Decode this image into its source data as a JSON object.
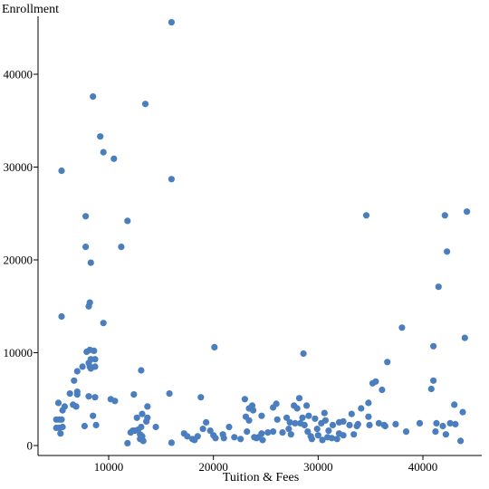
{
  "chart_data": {
    "type": "scatter",
    "title": "",
    "xlabel": "Tuition & Fees",
    "ylabel": "Enrollment",
    "xlim": [
      4000,
      45000
    ],
    "ylim": [
      0,
      46000
    ],
    "x_ticks": [
      10000,
      20000,
      30000,
      40000
    ],
    "y_ticks": [
      0,
      10000,
      20000,
      30000,
      40000
    ],
    "grid": false,
    "legend": "none",
    "point_color": "#4a7ebf",
    "points": [
      [
        16000,
        45600
      ],
      [
        8500,
        37600
      ],
      [
        13500,
        36800
      ],
      [
        9200,
        33300
      ],
      [
        9500,
        31600
      ],
      [
        10500,
        30900
      ],
      [
        5500,
        29600
      ],
      [
        16000,
        28700
      ],
      [
        7800,
        24700
      ],
      [
        11800,
        24200
      ],
      [
        7800,
        21400
      ],
      [
        11200,
        21400
      ],
      [
        8300,
        19700
      ],
      [
        8200,
        15400
      ],
      [
        8100,
        15000
      ],
      [
        5500,
        13900
      ],
      [
        9500,
        13200
      ],
      [
        8200,
        10300
      ],
      [
        7900,
        10100
      ],
      [
        8600,
        10200
      ],
      [
        8300,
        9300
      ],
      [
        8700,
        9300
      ],
      [
        8100,
        8900
      ],
      [
        8200,
        8500
      ],
      [
        8300,
        8300
      ],
      [
        7500,
        8500
      ],
      [
        8700,
        8500
      ],
      [
        7000,
        8000
      ],
      [
        13100,
        8100
      ],
      [
        6700,
        7000
      ],
      [
        7000,
        5800
      ],
      [
        7000,
        5500
      ],
      [
        8100,
        5300
      ],
      [
        8700,
        5200
      ],
      [
        10200,
        5000
      ],
      [
        10600,
        4800
      ],
      [
        6300,
        5600
      ],
      [
        5200,
        4600
      ],
      [
        5800,
        4200
      ],
      [
        6600,
        4400
      ],
      [
        6900,
        4200
      ],
      [
        7700,
        2100
      ],
      [
        8800,
        2200
      ],
      [
        5600,
        3800
      ],
      [
        8500,
        3200
      ],
      [
        12400,
        5500
      ],
      [
        13700,
        4200
      ],
      [
        13700,
        3000
      ],
      [
        13600,
        2600
      ],
      [
        13100,
        2000
      ],
      [
        12800,
        1700
      ],
      [
        12500,
        1600
      ],
      [
        13000,
        1200
      ],
      [
        13200,
        1000
      ],
      [
        13000,
        700
      ],
      [
        13300,
        500
      ],
      [
        12300,
        1600
      ],
      [
        12100,
        1400
      ],
      [
        11800,
        250
      ],
      [
        14500,
        2000
      ],
      [
        12700,
        3000
      ],
      [
        13200,
        3400
      ],
      [
        15800,
        5600
      ],
      [
        16000,
        300
      ],
      [
        5000,
        2800
      ],
      [
        5300,
        2800
      ],
      [
        5500,
        2800
      ],
      [
        5000,
        1900
      ],
      [
        5300,
        1900
      ],
      [
        5600,
        2000
      ],
      [
        5400,
        1300
      ],
      [
        18800,
        5200
      ],
      [
        20100,
        10600
      ],
      [
        17200,
        1300
      ],
      [
        17500,
        1000
      ],
      [
        18000,
        700
      ],
      [
        18500,
        1000
      ],
      [
        18200,
        600
      ],
      [
        19000,
        1800
      ],
      [
        19300,
        2500
      ],
      [
        19700,
        1600
      ],
      [
        20000,
        1100
      ],
      [
        20200,
        800
      ],
      [
        20900,
        1200
      ],
      [
        21000,
        800
      ],
      [
        21500,
        2000
      ],
      [
        22000,
        900
      ],
      [
        22600,
        700
      ],
      [
        23000,
        5000
      ],
      [
        23400,
        4000
      ],
      [
        23700,
        4300
      ],
      [
        23800,
        3800
      ],
      [
        23100,
        3100
      ],
      [
        23400,
        2700
      ],
      [
        23200,
        1500
      ],
      [
        23900,
        900
      ],
      [
        24100,
        800
      ],
      [
        24300,
        900
      ],
      [
        24600,
        1300
      ],
      [
        24700,
        600
      ],
      [
        24600,
        3200
      ],
      [
        25200,
        1400
      ],
      [
        25700,
        1500
      ],
      [
        25700,
        4100
      ],
      [
        26000,
        4500
      ],
      [
        26100,
        2800
      ],
      [
        26600,
        1400
      ],
      [
        27000,
        3000
      ],
      [
        27200,
        1800
      ],
      [
        27300,
        2500
      ],
      [
        27400,
        1200
      ],
      [
        27700,
        4300
      ],
      [
        28000,
        4000
      ],
      [
        27800,
        2400
      ],
      [
        28200,
        5100
      ],
      [
        28500,
        3000
      ],
      [
        28300,
        2400
      ],
      [
        28600,
        9900
      ],
      [
        28900,
        4300
      ],
      [
        28700,
        2200
      ],
      [
        29100,
        3200
      ],
      [
        29000,
        1500
      ],
      [
        29300,
        1000
      ],
      [
        29400,
        700
      ],
      [
        29700,
        2900
      ],
      [
        29900,
        1800
      ],
      [
        30000,
        1100
      ],
      [
        30300,
        2400
      ],
      [
        30400,
        600
      ],
      [
        30600,
        3500
      ],
      [
        30700,
        2700
      ],
      [
        30900,
        900
      ],
      [
        31000,
        1600
      ],
      [
        31300,
        800
      ],
      [
        31400,
        2200
      ],
      [
        31800,
        700
      ],
      [
        32000,
        1300
      ],
      [
        32000,
        2500
      ],
      [
        32400,
        2600
      ],
      [
        32400,
        1100
      ],
      [
        33000,
        2200
      ],
      [
        33200,
        3400
      ],
      [
        33400,
        1200
      ],
      [
        33700,
        2100
      ],
      [
        33800,
        2300
      ],
      [
        34100,
        4000
      ],
      [
        34600,
        24800
      ],
      [
        34800,
        4600
      ],
      [
        34800,
        3100
      ],
      [
        34900,
        2200
      ],
      [
        35200,
        6700
      ],
      [
        35500,
        6900
      ],
      [
        35800,
        2400
      ],
      [
        36100,
        6000
      ],
      [
        36300,
        2200
      ],
      [
        36400,
        2100
      ],
      [
        36600,
        9000
      ],
      [
        37400,
        2300
      ],
      [
        38000,
        12700
      ],
      [
        38400,
        1500
      ],
      [
        39700,
        2400
      ],
      [
        40800,
        6100
      ],
      [
        41000,
        7000
      ],
      [
        41000,
        10700
      ],
      [
        41200,
        1500
      ],
      [
        41300,
        2400
      ],
      [
        41500,
        17100
      ],
      [
        41900,
        2100
      ],
      [
        42100,
        24800
      ],
      [
        42300,
        20900
      ],
      [
        42200,
        1200
      ],
      [
        42600,
        2400
      ],
      [
        43000,
        4400
      ],
      [
        43100,
        2300
      ],
      [
        43600,
        500
      ],
      [
        43800,
        3600
      ],
      [
        44000,
        11600
      ],
      [
        44200,
        25200
      ]
    ]
  }
}
